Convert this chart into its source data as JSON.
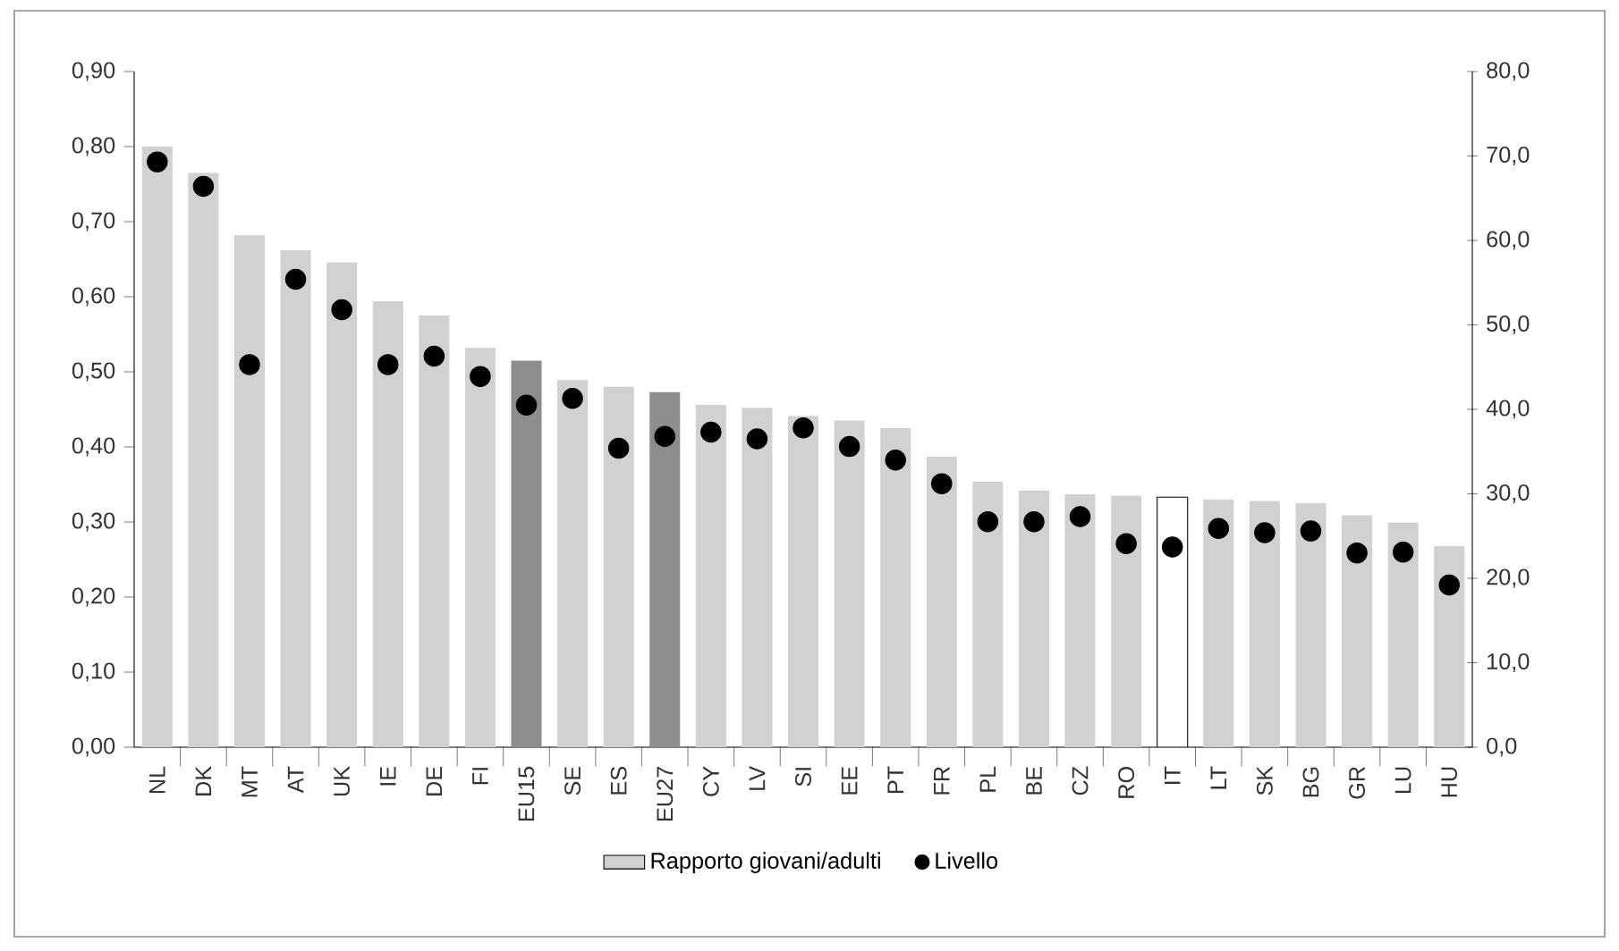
{
  "chart_data": {
    "type": "bar",
    "categories": [
      "NL",
      "DK",
      "MT",
      "AT",
      "UK",
      "IE",
      "DE",
      "FI",
      "EU15",
      "SE",
      "ES",
      "EU27",
      "CY",
      "LV",
      "SI",
      "EE",
      "PT",
      "FR",
      "PL",
      "BE",
      "CZ",
      "RO",
      "IT",
      "LT",
      "SK",
      "BG",
      "GR",
      "LU",
      "HU"
    ],
    "series": [
      {
        "name": "Rapporto giovani/adulti",
        "color": "#d0d1d1",
        "colors": [
          "#d0d1d1",
          "#d0d1d1",
          "#d0d1d1",
          "#d0d1d1",
          "#d0d1d1",
          "#d0d1d1",
          "#d0d1d1",
          "#d0d1d1",
          "#8c8d8c",
          "#d0d1d1",
          "#d0d1d1",
          "#8c8d8c",
          "#d0d1d1",
          "#d0d1d1",
          "#d0d1d1",
          "#d0d1d1",
          "#d0d1d1",
          "#d0d1d1",
          "#d0d1d1",
          "#d0d1d1",
          "#d0d1d1",
          "#d0d1d1",
          "#ffffff",
          "#d0d1d1",
          "#d0d1d1",
          "#d0d1d1",
          "#d0d1d1",
          "#d0d1d1",
          "#d0d1d1"
        ],
        "values": [
          0.8,
          0.765,
          0.682,
          0.662,
          0.646,
          0.594,
          0.575,
          0.532,
          0.515,
          0.489,
          0.48,
          0.473,
          0.456,
          0.452,
          0.441,
          0.435,
          0.425,
          0.387,
          0.354,
          0.342,
          0.337,
          0.335,
          0.333,
          0.33,
          0.328,
          0.325,
          0.309,
          0.299,
          0.268
        ]
      },
      {
        "name": "Livello",
        "type": "scatter",
        "axis": "y2",
        "color": "#000000",
        "values": [
          69.3,
          66.4,
          45.3,
          55.4,
          51.8,
          45.3,
          46.3,
          43.9,
          40.5,
          41.3,
          35.4,
          36.8,
          37.3,
          36.5,
          37.8,
          35.6,
          34.0,
          31.2,
          26.7,
          26.7,
          27.3,
          24.1,
          23.7,
          25.9,
          25.4,
          25.6,
          23.0,
          23.1,
          19.2
        ]
      }
    ],
    "marker": "circle",
    "legend": "bottom",
    "grid": false,
    "ylim": [
      0,
      0.9
    ],
    "yticks": [
      {
        "value": 0,
        "label": "0,00"
      },
      {
        "value": 0.1,
        "label": "0,10"
      },
      {
        "value": 0.2,
        "label": "0,20"
      },
      {
        "value": 0.3,
        "label": "0,30"
      },
      {
        "value": 0.4,
        "label": "0,40"
      },
      {
        "value": 0.5,
        "label": "0,50"
      },
      {
        "value": 0.6,
        "label": "0,60"
      },
      {
        "value": 0.7,
        "label": "0,70"
      },
      {
        "value": 0.8,
        "label": "0,80"
      },
      {
        "value": 0.9,
        "label": "0,90"
      }
    ],
    "y2lim": [
      0,
      80
    ],
    "y2ticks": [
      {
        "value": 0,
        "label": "0,0"
      },
      {
        "value": 10,
        "label": "10,0"
      },
      {
        "value": 20,
        "label": "20,0"
      },
      {
        "value": 30,
        "label": "30,0"
      },
      {
        "value": 40,
        "label": "40,0"
      },
      {
        "value": 50,
        "label": "50,0"
      },
      {
        "value": 60,
        "label": "60,0"
      },
      {
        "value": 70,
        "label": "70,0"
      },
      {
        "value": 80,
        "label": "80,0"
      }
    ]
  }
}
